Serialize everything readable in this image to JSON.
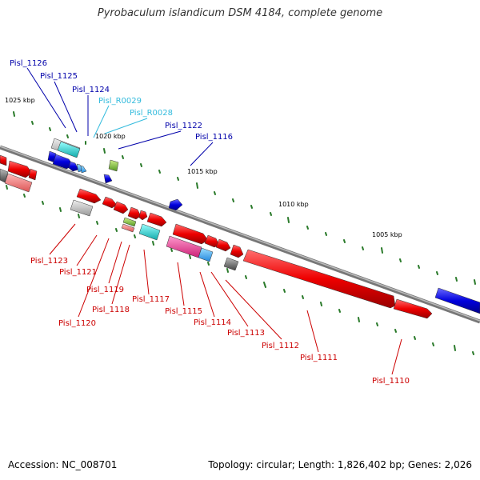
{
  "title": "Pyrobaculum islandicum DSM 4184, complete genome",
  "footer": {
    "accession": "Accession: NC_008701",
    "summary": "Topology: circular; Length: 1,826,402 bp; Genes: 2,026"
  },
  "colors": {
    "red_gene": "#ee0000",
    "blue_gene": "#0000dd",
    "rna_gene": "#33bbdd",
    "pink_gene": "#e8458a",
    "cyan_gene": "#22cccc",
    "gray_gene": "#aaaaaa",
    "backbone": "#888888",
    "tick": "#2a7a2a",
    "label_red": "#cc0000",
    "label_blue": "#0000aa",
    "label_rna": "#33bbdd"
  },
  "scale_labels": [
    "1025 kbp",
    "1020 kbp",
    "1015 kbp",
    "1010 kbp",
    "1005 kbp"
  ],
  "gene_labels": {
    "forward": [
      "Pisl_1126",
      "Pisl_1125",
      "Pisl_1124",
      "Pisl_R0029",
      "Pisl_R0028",
      "Pisl_1122",
      "Pisl_1116"
    ],
    "reverse": [
      "Pisl_1123",
      "Pisl_1121",
      "Pisl_1119",
      "Pisl_1118",
      "Pisl_1120",
      "Pisl_1117",
      "Pisl_1115",
      "Pisl_1114",
      "Pisl_1113",
      "Pisl_1112",
      "Pisl_1111",
      "Pisl_1110"
    ]
  }
}
